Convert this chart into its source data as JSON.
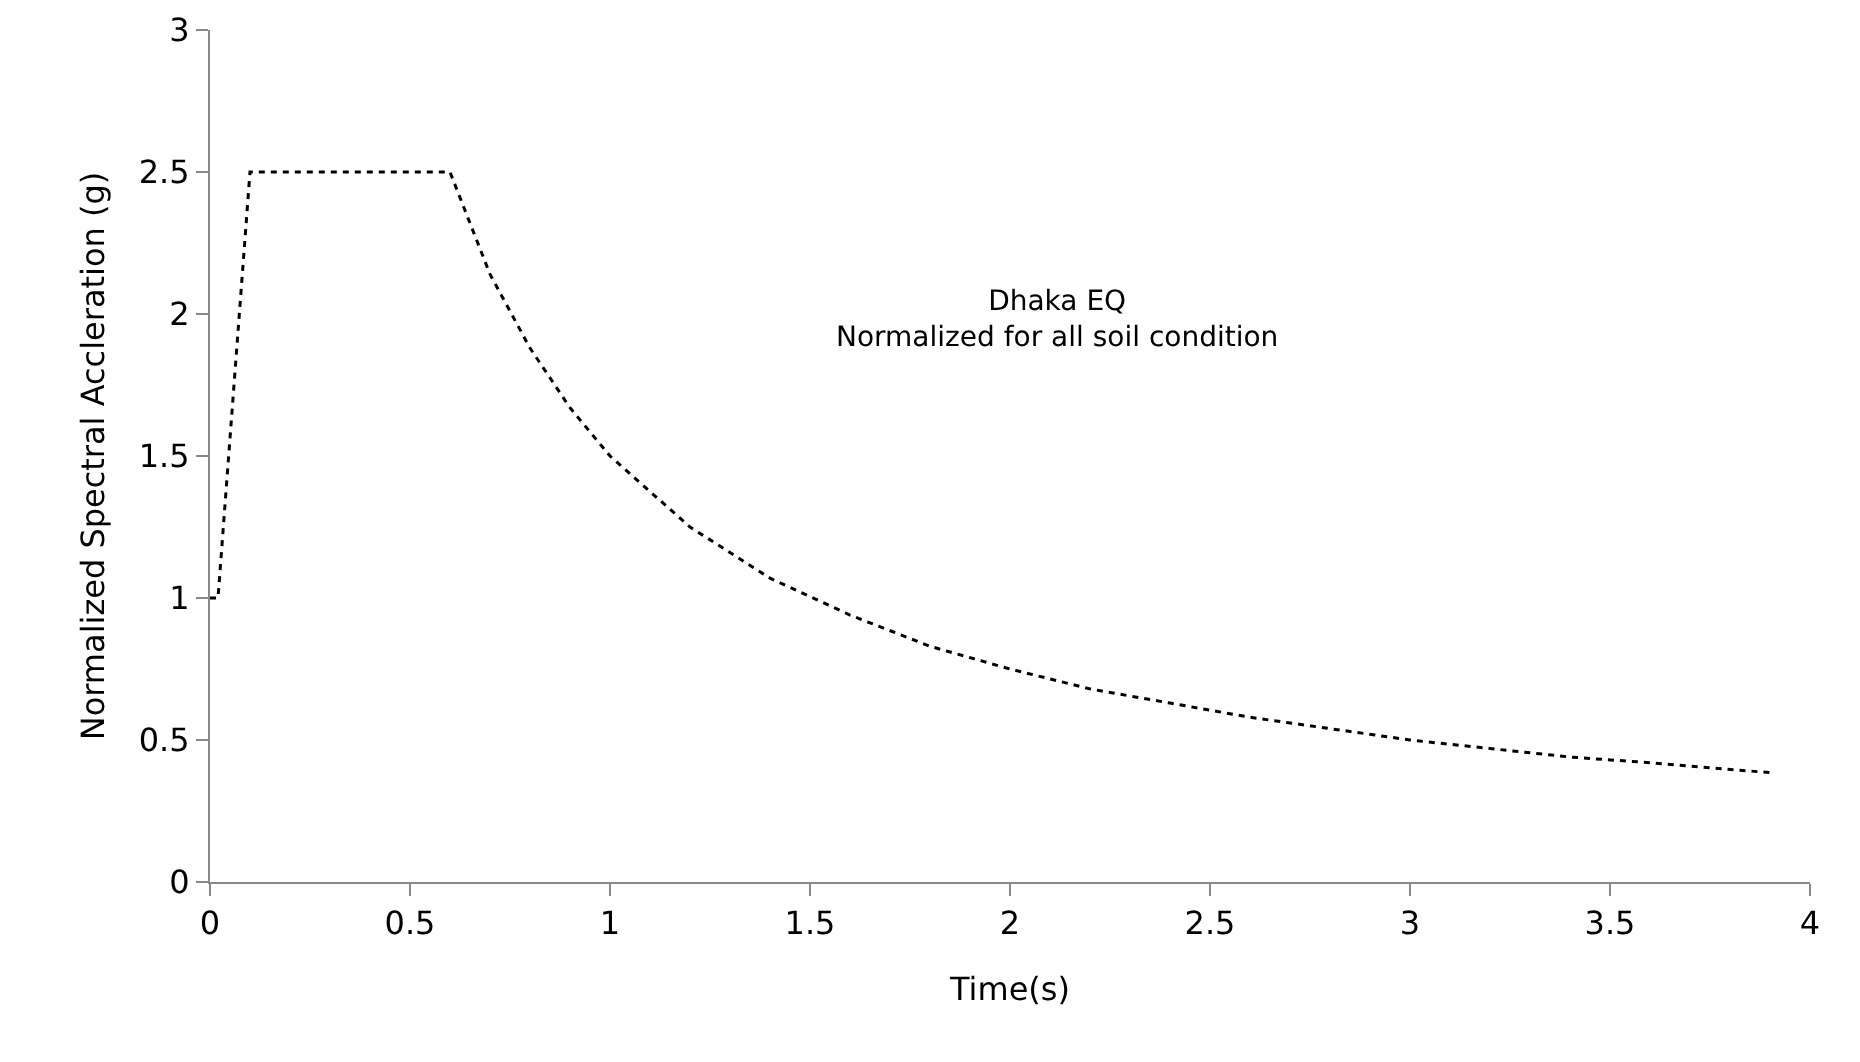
{
  "chart_data": {
    "type": "line",
    "xlabel": "Time(s)",
    "ylabel": "Normalized Spectral Accleration (g)",
    "annotations": [
      "Dhaka EQ\nNormalized for all soil condition"
    ],
    "series": [
      {
        "color": "#000000",
        "x": [
          0,
          0.02,
          0.1,
          0.6,
          0.7,
          0.8,
          0.9,
          1.0,
          1.2,
          1.4,
          1.6,
          1.8,
          2.0,
          2.2,
          2.4,
          2.6,
          2.8,
          3.0,
          3.2,
          3.4,
          3.6,
          3.9
        ],
        "values": [
          1.0,
          1.0,
          2.5,
          2.5,
          2.14,
          1.88,
          1.67,
          1.5,
          1.25,
          1.07,
          0.94,
          0.83,
          0.75,
          0.68,
          0.63,
          0.58,
          0.54,
          0.5,
          0.47,
          0.44,
          0.42,
          0.385
        ]
      }
    ],
    "xlim": [
      0,
      4
    ],
    "xticks": [
      0,
      0.5,
      1,
      1.5,
      2,
      2.5,
      3,
      3.5,
      4
    ],
    "ylim": [
      0,
      3
    ],
    "yticks": [
      0,
      0.5,
      1,
      1.5,
      2,
      2.5,
      3
    ],
    "line_style": "dotted"
  }
}
